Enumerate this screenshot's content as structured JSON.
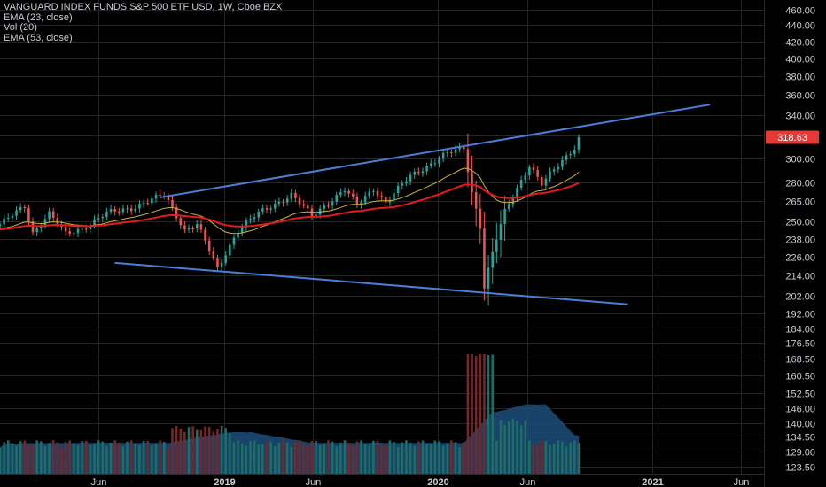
{
  "legend": {
    "title": "VANGUARD INDEX FUNDS S&P 500 ETF USD, 1W, Cboe BZX",
    "ema23": "EMA (23, close)",
    "vol": "Vol (20)",
    "ema53": "EMA (53, close)"
  },
  "price_label": {
    "value": "318.63",
    "bg": "#e53935"
  },
  "colors": {
    "background": "#000000",
    "grid": "#242424",
    "up_candle": "#26a69a",
    "down_candle": "#ef5350",
    "ema23": "#c9b23a",
    "ema53": "#e31b1b",
    "trendline": "#4a7fd8",
    "volume_up": "#1e6e66",
    "volume_down": "#7a2626",
    "volume_ma": "#1c4e7a"
  },
  "chart_data": {
    "type": "candlestick",
    "title": "VANGUARD INDEX FUNDS S&P 500 ETF USD, 1W, Cboe BZX",
    "y_scale": "log",
    "ylim": [
      121.0,
      473.0
    ],
    "y_ticks": [
      "460.00",
      "440.00",
      "420.00",
      "400.00",
      "380.00",
      "360.00",
      "340.00",
      "320.00",
      "300.00",
      "280.00",
      "265.00",
      "250.00",
      "238.00",
      "226.00",
      "214.00",
      "202.00",
      "192.00",
      "184.00",
      "176.50",
      "168.50",
      "160.50",
      "152.50",
      "146.00",
      "140.00",
      "134.50",
      "129.00",
      "123.50"
    ],
    "x_ticks": [
      {
        "label": "Jun",
        "date": "2018-06-01",
        "bold": false
      },
      {
        "label": "2019",
        "date": "2019-01-01",
        "bold": true
      },
      {
        "label": "Jun",
        "date": "2019-06-01",
        "bold": false
      },
      {
        "label": "2020",
        "date": "2020-01-01",
        "bold": true
      },
      {
        "label": "Jun",
        "date": "2020-06-01",
        "bold": false
      },
      {
        "label": "2021",
        "date": "2021-01-01",
        "bold": true
      },
      {
        "label": "Jun",
        "date": "2021-06-01",
        "bold": false
      }
    ],
    "x_range": [
      "2017-12-15",
      "2021-07-10"
    ],
    "close_anchors": [
      [
        "2017-12-15",
        248
      ],
      [
        "2018-01-26",
        261
      ],
      [
        "2018-02-09",
        242
      ],
      [
        "2018-03-09",
        256
      ],
      [
        "2018-04-06",
        241
      ],
      [
        "2018-05-04",
        245
      ],
      [
        "2018-06-15",
        256
      ],
      [
        "2018-07-27",
        260
      ],
      [
        "2018-09-21",
        270
      ],
      [
        "2018-10-26",
        244
      ],
      [
        "2018-11-16",
        248
      ],
      [
        "2018-12-21",
        218
      ],
      [
        "2019-01-25",
        244
      ],
      [
        "2019-03-01",
        256
      ],
      [
        "2019-04-26",
        270
      ],
      [
        "2019-05-31",
        254
      ],
      [
        "2019-07-26",
        274
      ],
      [
        "2019-08-16",
        262
      ],
      [
        "2019-09-13",
        275
      ],
      [
        "2019-10-04",
        264
      ],
      [
        "2019-11-15",
        285
      ],
      [
        "2020-01-17",
        304
      ],
      [
        "2020-02-14",
        309
      ],
      [
        "2020-02-28",
        272
      ],
      [
        "2020-03-13",
        247
      ],
      [
        "2020-03-20",
        207
      ],
      [
        "2020-04-03",
        228
      ],
      [
        "2020-04-24",
        257
      ],
      [
        "2020-06-05",
        294
      ],
      [
        "2020-06-26",
        278
      ],
      [
        "2020-07-31",
        298
      ],
      [
        "2020-08-21",
        310
      ],
      [
        "2020-09-02",
        320
      ]
    ],
    "last_price": 318.63,
    "series": [
      {
        "name": "EMA (23, close)"
      },
      {
        "name": "EMA (53, close)"
      },
      {
        "name": "Vol (20)"
      }
    ],
    "trendlines": [
      {
        "from": {
          "date": "2018-09-14",
          "price": 268
        },
        "to": {
          "date": "2021-04-09",
          "price": 350
        }
      },
      {
        "from": {
          "date": "2018-06-29",
          "price": 222
        },
        "to": {
          "date": "2020-11-20",
          "price": 197
        }
      }
    ]
  }
}
